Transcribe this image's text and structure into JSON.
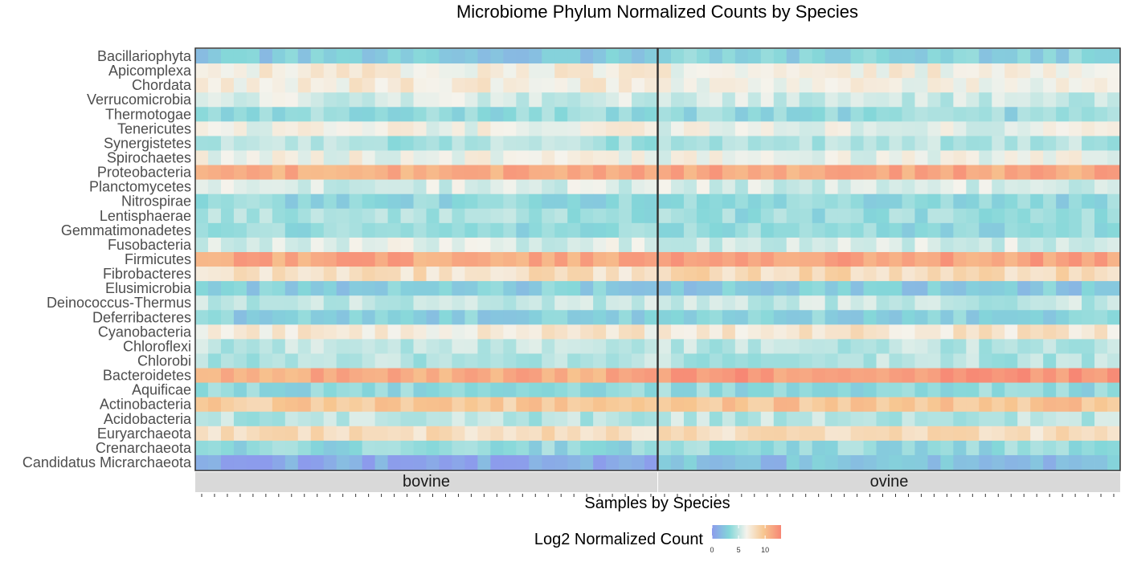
{
  "chart_data": {
    "type": "heatmap",
    "title": "Microbiome Phylum Normalized Counts by Species",
    "xlabel": "Samples by Species",
    "ylabel": "",
    "rows": [
      "Bacillariophyta",
      "Apicomplexa",
      "Chordata",
      "Verrucomicrobia",
      "Thermotogae",
      "Tenericutes",
      "Synergistetes",
      "Spirochaetes",
      "Proteobacteria",
      "Planctomycetes",
      "Nitrospirae",
      "Lentisphaerae",
      "Gemmatimonadetes",
      "Fusobacteria",
      "Firmicutes",
      "Fibrobacteres",
      "Elusimicrobia",
      "Deinococcus-Thermus",
      "Deferribacteres",
      "Cyanobacteria",
      "Chloroflexi",
      "Chlorobi",
      "Bacteroidetes",
      "Aquificae",
      "Actinobacteria",
      "Acidobacteria",
      "Euryarchaeota",
      "Crenarchaeota",
      "Candidatus Micrarchaeota"
    ],
    "panels": [
      {
        "name": "bovine",
        "n_samples": 36,
        "row_means": [
          2.5,
          7.0,
          7.0,
          5.6,
          3.7,
          6.5,
          4.4,
          6.5,
          11.2,
          5.7,
          3.4,
          4.1,
          3.6,
          5.8,
          11.3,
          8.0,
          2.8,
          5.0,
          3.0,
          7.2,
          4.8,
          4.6,
          11.0,
          3.5,
          9.4,
          4.7,
          8.0,
          3.5,
          1.0
        ]
      },
      {
        "name": "ovine",
        "n_samples": 36,
        "row_means": [
          3.0,
          6.8,
          6.6,
          5.3,
          3.6,
          6.1,
          4.6,
          6.3,
          11.2,
          5.5,
          3.4,
          3.8,
          3.6,
          5.6,
          11.6,
          8.4,
          2.6,
          5.0,
          3.2,
          7.6,
          4.9,
          4.6,
          12.0,
          3.6,
          9.8,
          4.9,
          7.9,
          3.6,
          2.0
        ]
      }
    ],
    "color_scale": {
      "title": "Log2 Normalized Count",
      "breaks": [
        0,
        5,
        10
      ],
      "min": 0,
      "max": 13,
      "colors": [
        "#8c9bec",
        "#84d7d9",
        "#f5f3ec",
        "#f7c690",
        "#f78774"
      ]
    },
    "grid": false
  }
}
